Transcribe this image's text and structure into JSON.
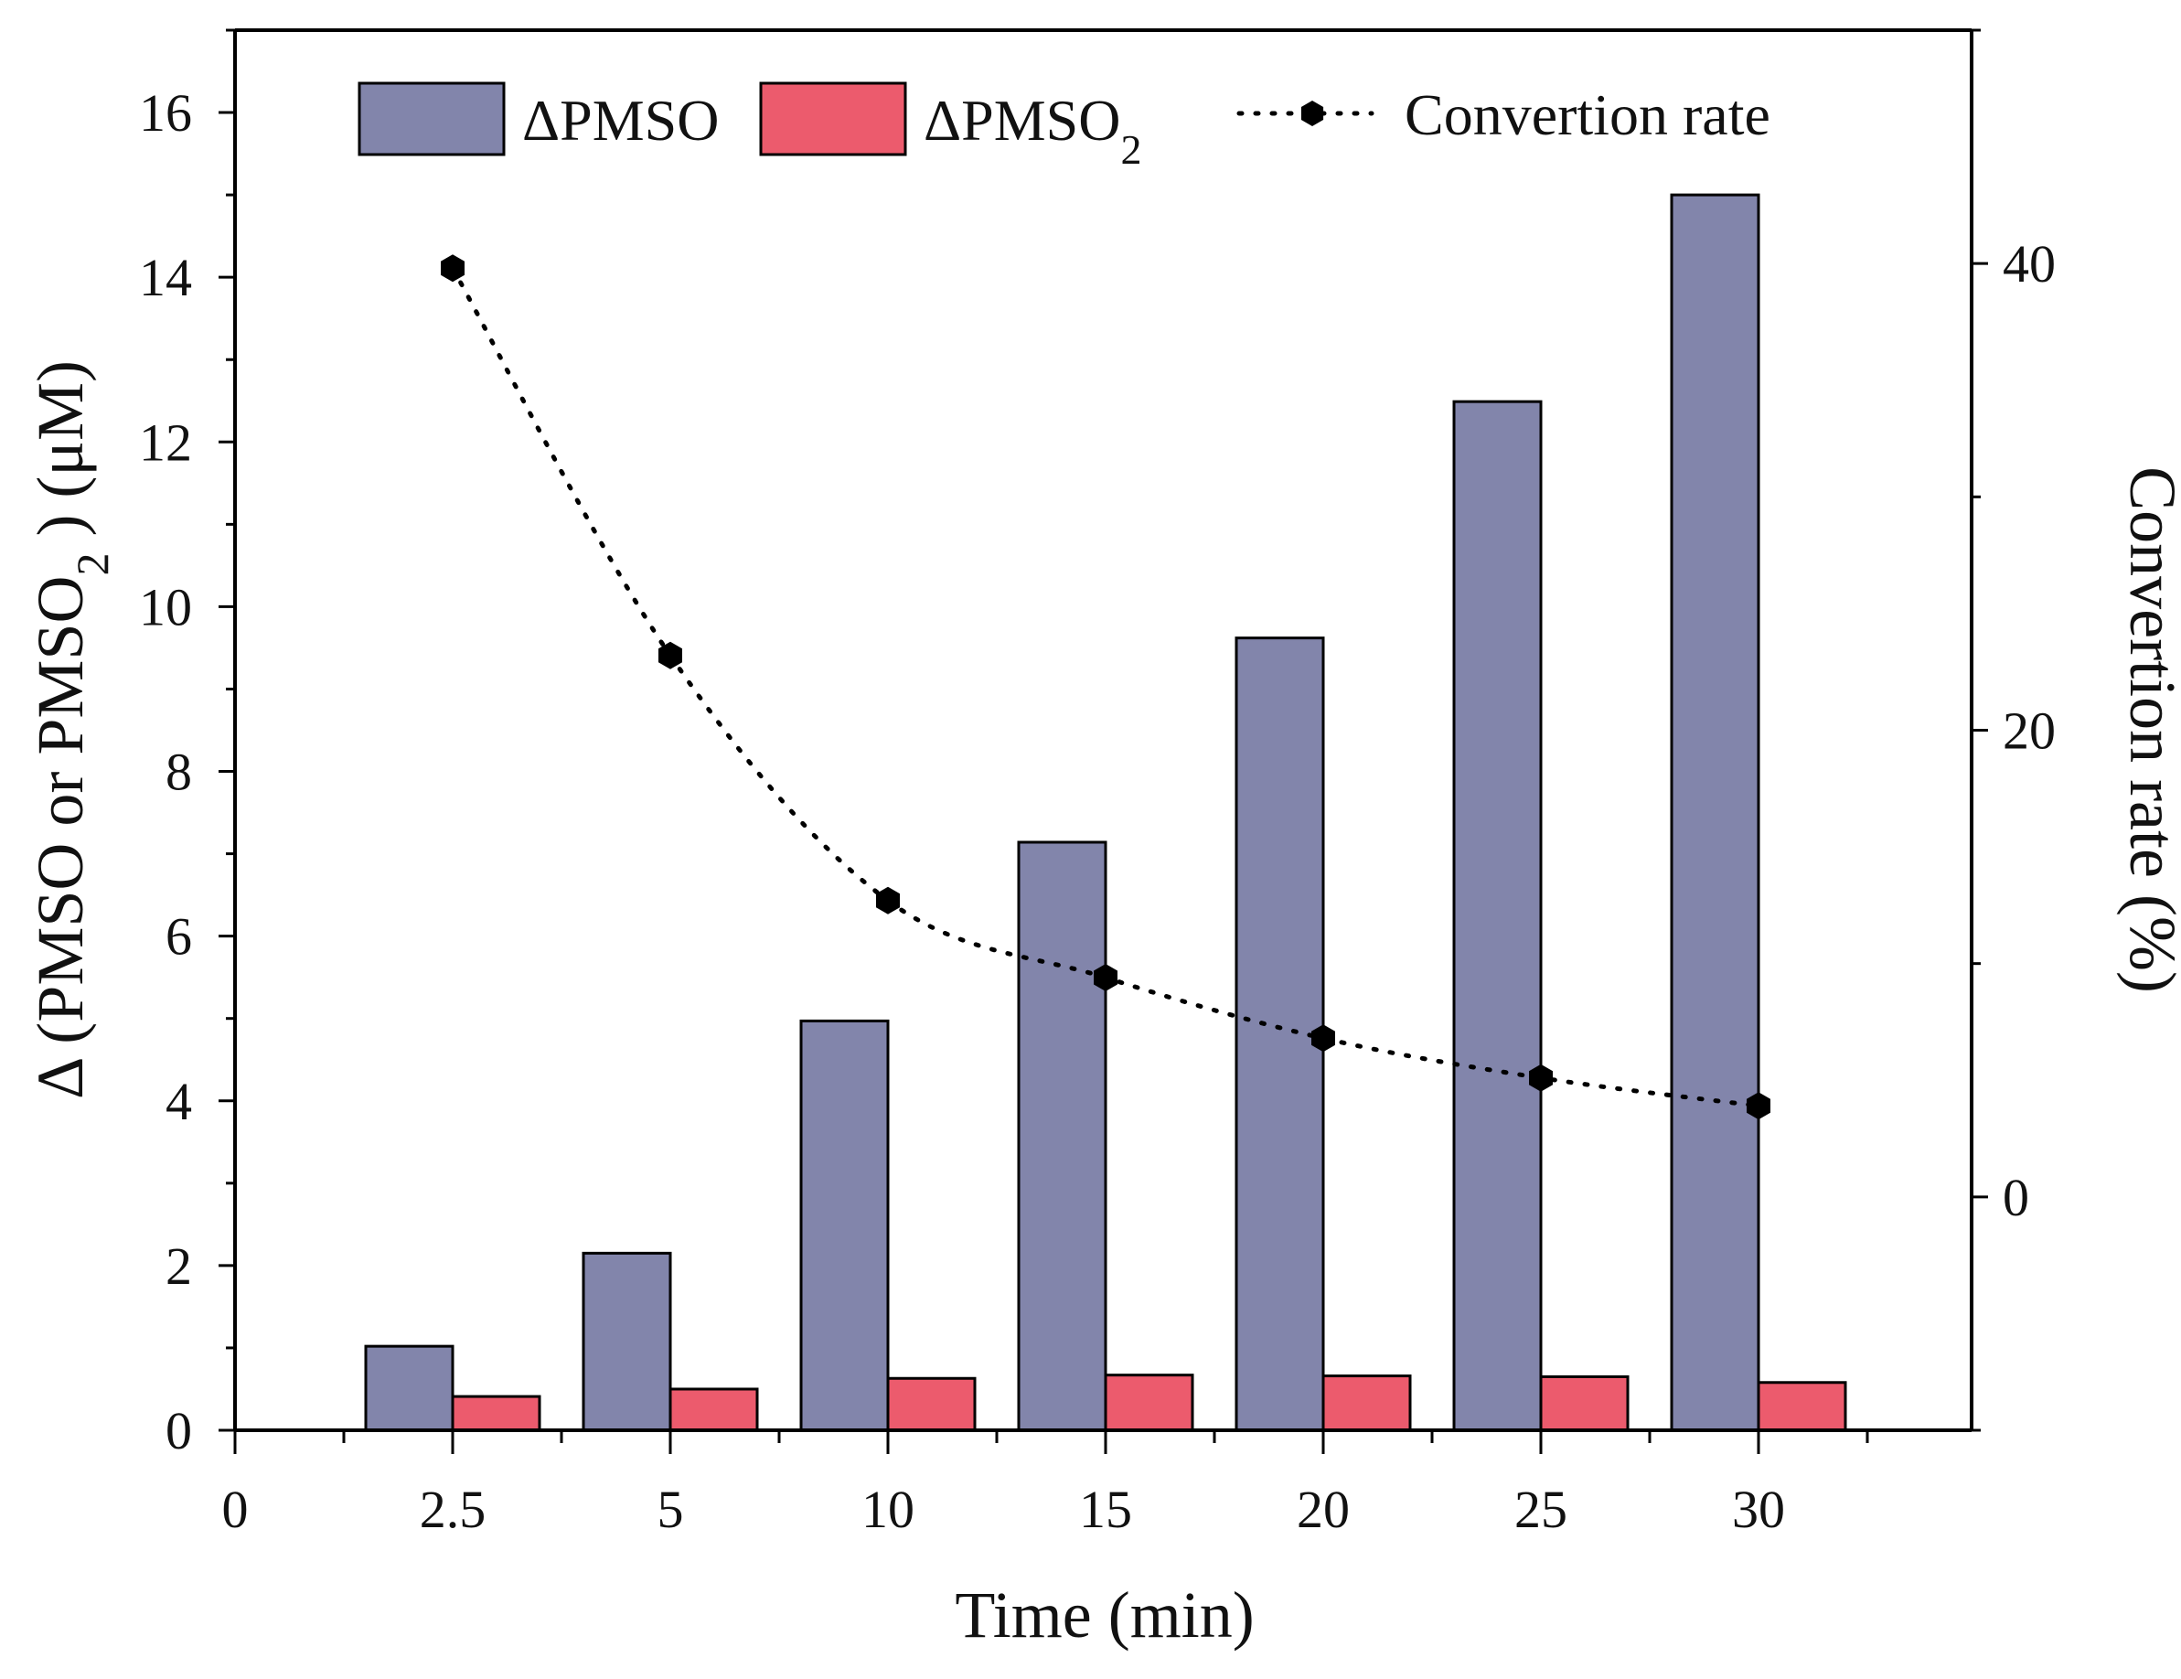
{
  "chart_data": {
    "type": "bar",
    "categories": [
      "2.5",
      "5",
      "10",
      "15",
      "20",
      "25",
      "30"
    ],
    "x_zero_label": "0",
    "series": [
      {
        "name": "ΔPMSO",
        "axis": "left",
        "kind": "bar",
        "color": "#8285ab",
        "values": [
          1.02,
          2.15,
          4.97,
          7.14,
          9.62,
          12.49,
          15.0
        ]
      },
      {
        "name": "ΔPMSO",
        "subscript": "2",
        "axis": "left",
        "kind": "bar",
        "color": "#ec5b6d",
        "values": [
          0.41,
          0.5,
          0.63,
          0.67,
          0.66,
          0.65,
          0.58
        ]
      },
      {
        "name": "Convertion rate",
        "axis": "right",
        "kind": "line",
        "style": "dotted",
        "marker": "hexagon",
        "color": "#000000",
        "values": [
          39.8,
          23.2,
          12.7,
          9.4,
          6.8,
          5.1,
          3.9
        ]
      }
    ],
    "xlabel": "Time (min)",
    "ylabel": {
      "left": {
        "before": "Δ (PMSO or PMSO",
        "sub": "2",
        "after": " ) (μM)"
      },
      "right": "Convertion rate (%)"
    },
    "ylim_left": [
      0,
      17
    ],
    "yticks_left": [
      0,
      2,
      4,
      6,
      8,
      10,
      12,
      14,
      16
    ],
    "ylim_right": [
      -10,
      50
    ],
    "yticks_right": [
      0,
      20,
      40
    ],
    "legend_position": "top",
    "grid": false
  }
}
